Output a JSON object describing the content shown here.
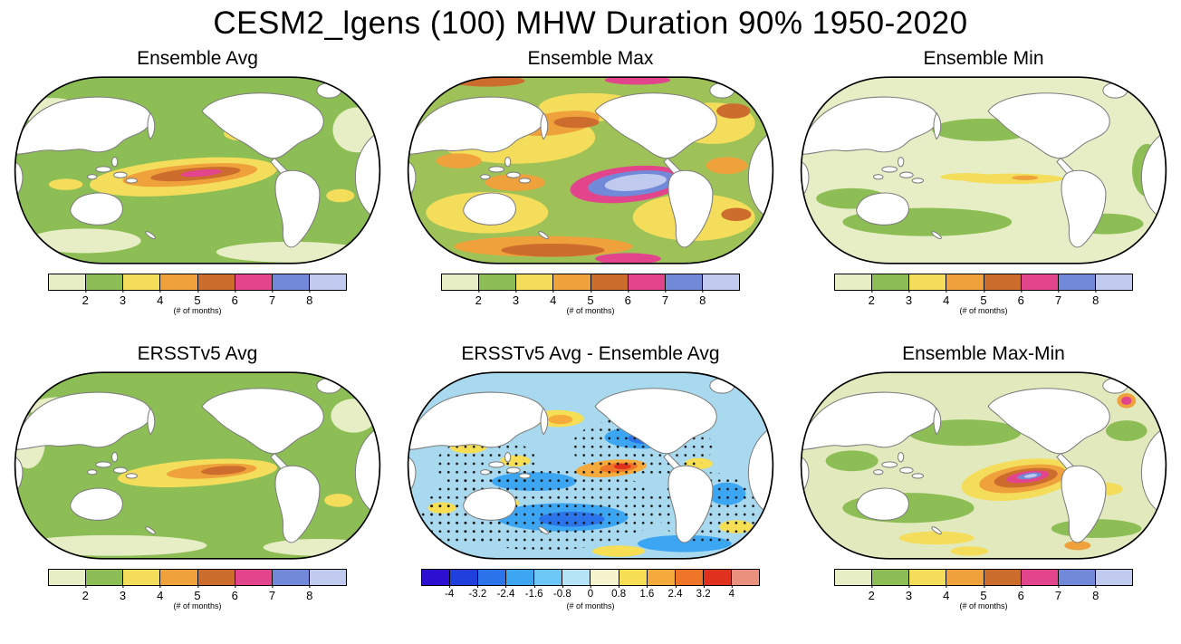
{
  "figure": {
    "title": "CESM2_lgens (100) MHW Duration 90% 1950-2020"
  },
  "panels": [
    {
      "id": "ensemble-avg",
      "title": "Ensemble Avg",
      "colorbar": "months",
      "base_color": "#8dbe55"
    },
    {
      "id": "ensemble-max",
      "title": "Ensemble Max",
      "colorbar": "months",
      "base_color": "#9fc258"
    },
    {
      "id": "ensemble-min",
      "title": "Ensemble Min",
      "colorbar": "months",
      "base_color": "#e7eec6"
    },
    {
      "id": "ersstv5-avg",
      "title": "ERSSTv5 Avg",
      "colorbar": "months",
      "base_color": "#8dbe55"
    },
    {
      "id": "ersstv5-minus-ensemble",
      "title": "ERSSTv5 Avg - Ensemble Avg",
      "colorbar": "diff",
      "base_color": "#a9d9ee"
    },
    {
      "id": "ensemble-max-min",
      "title": "Ensemble Max-Min",
      "colorbar": "months",
      "base_color": "#e2eabd"
    }
  ],
  "colorbars": {
    "months": {
      "ticks": [
        "2",
        "3",
        "4",
        "5",
        "6",
        "7",
        "8"
      ],
      "unit_label": "(# of months)",
      "colors": [
        "#e7eec6",
        "#8dbe55",
        "#f4dd5a",
        "#efa13b",
        "#cd6d2d",
        "#e2458c",
        "#7288d8",
        "#bfcaee"
      ]
    },
    "diff": {
      "ticks": [
        "-4",
        "-3.2",
        "-2.4",
        "-1.6",
        "-0.8",
        "0",
        "0.8",
        "1.6",
        "2.4",
        "3.2",
        "4"
      ],
      "unit_label": "(# of months)",
      "colors": [
        "#2c10d2",
        "#2040dd",
        "#2b74ea",
        "#3da6f2",
        "#6cc6f6",
        "#b5e4f6",
        "#f6f3cf",
        "#f6df55",
        "#f4ab3c",
        "#ee7527",
        "#e0301e",
        "#e9907f"
      ]
    }
  },
  "chart_data": [
    {
      "type": "heatmap",
      "title": "Ensemble Avg",
      "variable": "Marine heatwave duration, 90th percentile, 1950-2020, CESM2 large ensemble (100 members)",
      "units": "# of months",
      "projection": "Robinson global, Pacific-centered",
      "color_levels": [
        2,
        3,
        4,
        5,
        6,
        7,
        8
      ],
      "summary": "Most ocean 2-3 months; central/eastern equatorial Pacific elevated 4-6 months with small >6 (magenta) core; pale <2 patches in subpolar and far southern oceans."
    },
    {
      "type": "heatmap",
      "title": "Ensemble Max",
      "variable": "Maximum MHW duration across 100 ensemble members",
      "units": "# of months",
      "projection": "Robinson global, Pacific-centered",
      "color_levels": [
        2,
        3,
        4,
        5,
        6,
        7,
        8
      ],
      "summary": "Widespread 3-5 months; eastern equatorial Pacific exceeds 7-8 (blue/periwinkle core ringed by magenta 6-7); Southern Ocean and North Pacific patches reach 5-6."
    },
    {
      "type": "heatmap",
      "title": "Ensemble Min",
      "variable": "Minimum MHW duration across 100 ensemble members",
      "units": "# of months",
      "projection": "Robinson global, Pacific-centered",
      "color_levels": [
        2,
        3,
        4,
        5,
        6,
        7,
        8
      ],
      "summary": "Mostly below 2 months; mid-latitude bands 2-3; thin equatorial Pacific strip 3-4."
    },
    {
      "type": "heatmap",
      "title": "ERSSTv5 Avg",
      "variable": "Observed (ERSSTv5) MHW duration, 1950-2020",
      "units": "# of months",
      "projection": "Robinson global, Pacific-centered",
      "color_levels": [
        2,
        3,
        4,
        5,
        6,
        7,
        8
      ],
      "summary": "Similar to Ensemble Avg: mostly 2-3 months; equatorial Pacific 4-5 with small 5-6 core; weaker extreme than ensemble mean."
    },
    {
      "type": "heatmap",
      "title": "ERSSTv5 Avg - Ensemble Avg",
      "variable": "Observation minus ensemble-mean MHW duration",
      "units": "# of months",
      "projection": "Robinson global, Pacific-centered",
      "color_levels": [
        -4,
        -3.2,
        -2.4,
        -1.6,
        -0.8,
        0,
        0.8,
        1.6,
        2.4,
        3.2,
        4
      ],
      "summary": "Mostly -1.6 to 0 (light/medium blue: observations shorter than ensemble mean) with scattered 0 to +1.6 yellow patches; eastern equatorial Pacific positive +1.6 to +3.2 (orange/red); black stippling marks significant differences."
    },
    {
      "type": "heatmap",
      "title": "Ensemble Max-Min",
      "variable": "Ensemble spread (max minus min) of MHW duration",
      "units": "# of months",
      "projection": "Robinson global, Pacific-centered",
      "color_levels": [
        2,
        3,
        4,
        5,
        6,
        7,
        8
      ],
      "summary": "Spread mostly under 2-3 months; eastern equatorial Pacific spread exceeds 6-8 (orange/magenta with small blue-lavender core); isolated high-spread spot in the far North Atlantic."
    }
  ]
}
